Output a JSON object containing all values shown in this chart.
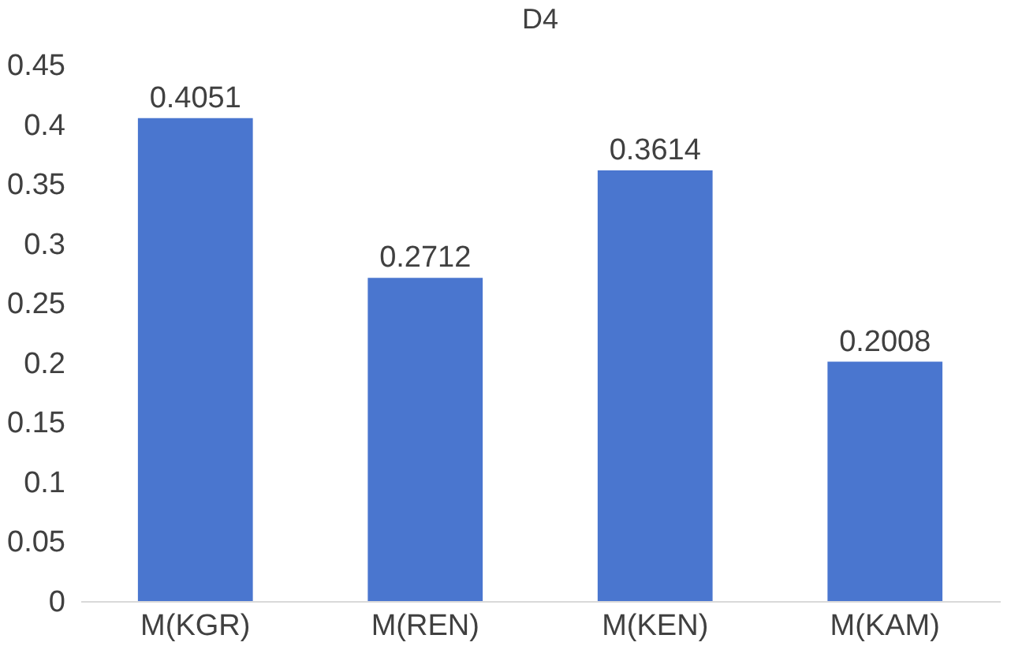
{
  "chart_data": {
    "type": "bar",
    "title": "D4",
    "categories": [
      "M(KGR)",
      "M(REN)",
      "M(KEN)",
      "M(KAM)"
    ],
    "values": [
      0.4051,
      0.2712,
      0.3614,
      0.2008
    ],
    "color": "#4a76cf",
    "ylim": [
      0,
      0.45
    ],
    "yticks": [
      0,
      0.05,
      0.1,
      0.15,
      0.2,
      0.25,
      0.3,
      0.35,
      0.4,
      0.45
    ],
    "data_labels": true,
    "grid": false
  }
}
